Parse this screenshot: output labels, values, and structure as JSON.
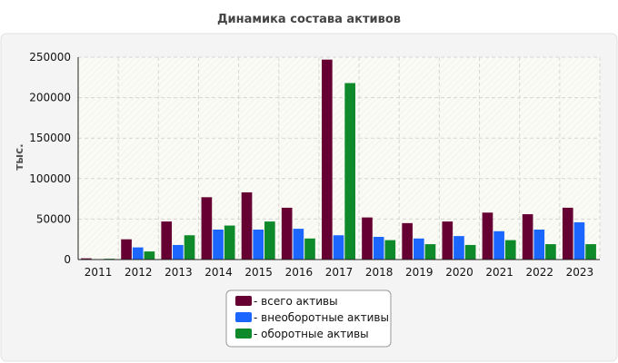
{
  "chart_data": {
    "type": "bar",
    "title": "Динамика состава активов",
    "xlabel": "",
    "ylabel": "тыс.",
    "ylim": [
      0,
      250000
    ],
    "yticks": [
      "0",
      "50000",
      "100000",
      "150000",
      "200000",
      "250000"
    ],
    "grid": true,
    "legend_position": "bottom-center",
    "categories": [
      "2011",
      "2012",
      "2013",
      "2014",
      "2015",
      "2016",
      "2017",
      "2018",
      "2019",
      "2020",
      "2021",
      "2022",
      "2023"
    ],
    "series": [
      {
        "name": "- всего активы",
        "color": "#660033",
        "values": [
          1500,
          25000,
          47000,
          77000,
          83000,
          64000,
          247000,
          52000,
          45000,
          47000,
          58000,
          56000,
          64000
        ]
      },
      {
        "name": "- внеоборотные активы",
        "color": "#1a66ff",
        "values": [
          500,
          15000,
          18000,
          37000,
          37000,
          38000,
          30000,
          28000,
          26000,
          29000,
          35000,
          37000,
          46000
        ]
      },
      {
        "name": "- оборотные активы",
        "color": "#0f8a2a",
        "values": [
          1000,
          10000,
          30000,
          42000,
          47000,
          26000,
          218000,
          24000,
          19000,
          18000,
          24000,
          19000,
          19000
        ]
      }
    ]
  }
}
